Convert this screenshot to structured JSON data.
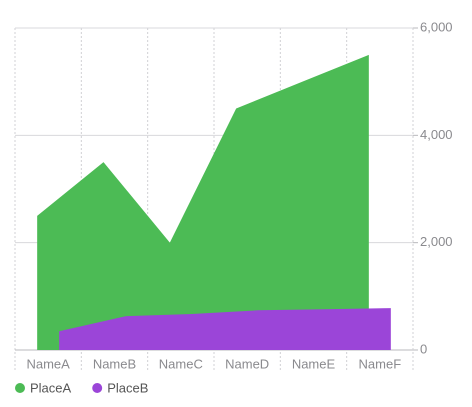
{
  "chart_data": {
    "type": "area",
    "categories": [
      "NameA",
      "NameB",
      "NameC",
      "NameD",
      "NameE",
      "NameF"
    ],
    "series": [
      {
        "name": "PlaceA",
        "color": "#4cbb55",
        "values": [
          2500,
          3500,
          2000,
          4500,
          5000,
          5500
        ]
      },
      {
        "name": "PlaceB",
        "color": "#9b45d8",
        "values": [
          350,
          630,
          670,
          740,
          760,
          780
        ]
      }
    ],
    "ylim": [
      0,
      6000
    ],
    "yticks": [
      0,
      {
        "value": 2000,
        "label": "2,000"
      },
      {
        "value": 4000,
        "label": "4,000"
      },
      {
        "value": 6000,
        "label": "6,000"
      }
    ],
    "grid": true,
    "legend": "bottom-left"
  }
}
